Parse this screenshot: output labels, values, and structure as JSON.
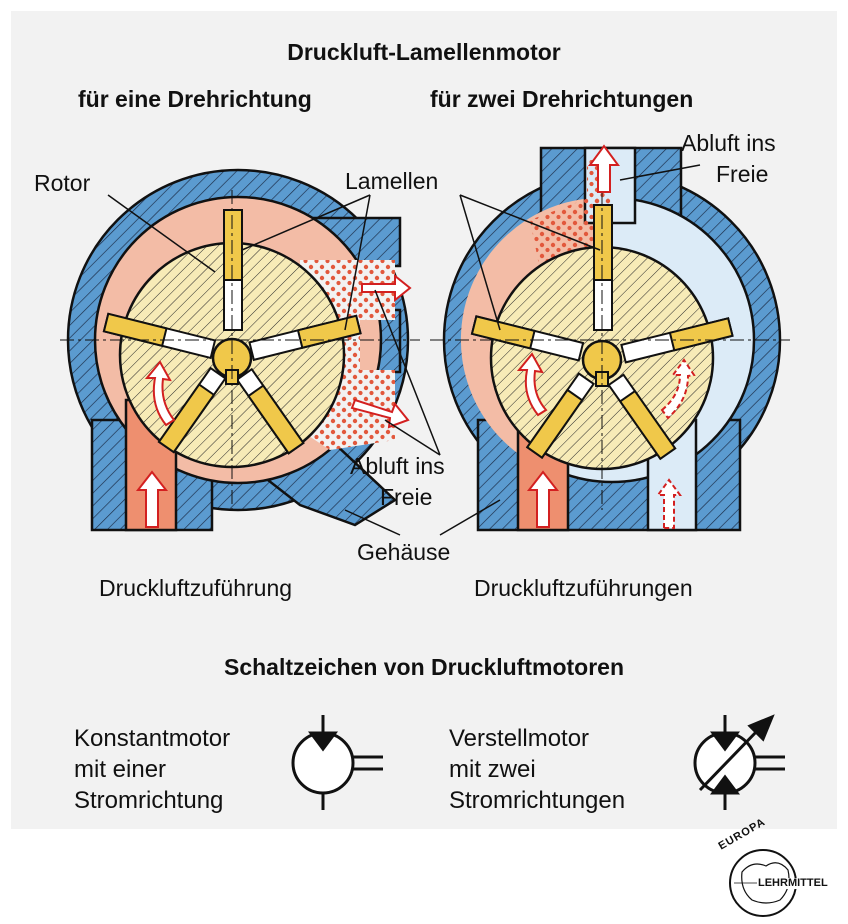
{
  "title": "Druckluft-Lamellenmotor",
  "left": {
    "heading": "für eine Drehrichtung",
    "label_rotor": "Rotor",
    "label_exhaust_line1": "Abluft ins",
    "label_exhaust_line2": "Freie",
    "label_supply": "Druckluftzuführung"
  },
  "right": {
    "heading": "für zwei Drehrichtungen",
    "label_exhaust_line1": "Abluft ins",
    "label_exhaust_line2": "Freie",
    "label_supply": "Druckluftzuführungen"
  },
  "shared": {
    "label_vanes": "Lamellen",
    "label_housing": "Gehäuse"
  },
  "symbols": {
    "heading": "Schaltzeichen von Druckluftmotoren",
    "constant": {
      "line1": "Konstantmotor",
      "line2": "mit einer",
      "line3": "Stromrichtung"
    },
    "variable": {
      "line1": "Verstellmotor",
      "line2": "mit zwei",
      "line3": "Stromrichtungen"
    }
  },
  "logo": {
    "top": "EUROPA",
    "bottom": "LEHRMITTEL"
  },
  "colors": {
    "housing": "#5b9bd0",
    "pressure_air": "#f3bca6",
    "supply_duct": "#ee8f6f",
    "exhaust_air": "#dcebf7",
    "rotor": "#f7ebb7",
    "vane": "#f0c84a",
    "arrow": "#d32020",
    "particles": "#e2583c"
  }
}
